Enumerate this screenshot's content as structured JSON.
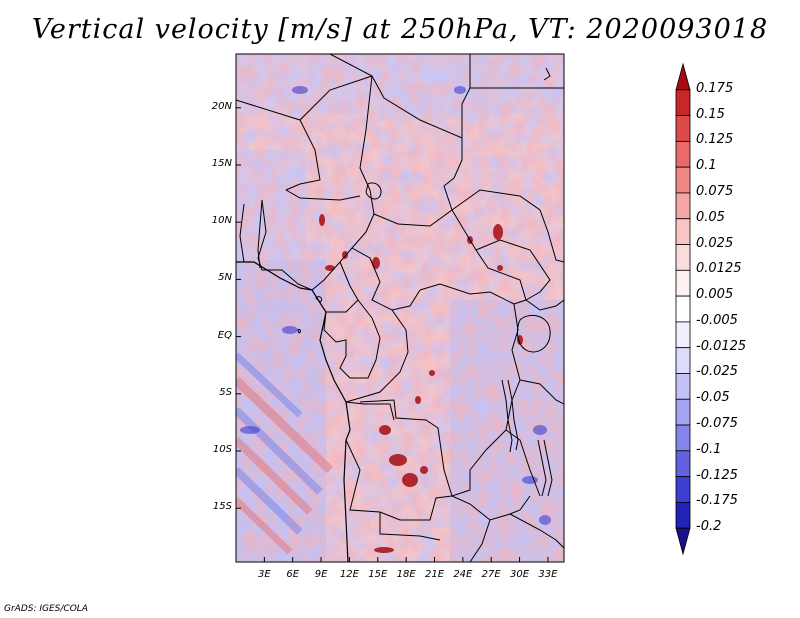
{
  "title": "Vertical velocity [m/s] at 250hPa, VT: 2020093018",
  "credit": "GrADS: IGES/COLA",
  "map": {
    "lat_labels": [
      "20N",
      "15N",
      "10N",
      "5N",
      "EQ",
      "5S",
      "10S",
      "15S"
    ],
    "lat_values": [
      20,
      15,
      10,
      5,
      0,
      -5,
      -10,
      -15
    ],
    "lon_labels": [
      "3E",
      "6E",
      "9E",
      "12E",
      "15E",
      "18E",
      "21E",
      "24E",
      "27E",
      "30E",
      "33E"
    ],
    "lon_values": [
      3,
      6,
      9,
      12,
      15,
      18,
      21,
      24,
      27,
      30,
      33
    ],
    "lat_range": [
      -19.7,
      24.7
    ],
    "lon_range": [
      0,
      34.7
    ]
  },
  "colorbar": {
    "labels": [
      "0.175",
      "0.15",
      "0.125",
      "0.1",
      "0.075",
      "0.05",
      "0.025",
      "0.0125",
      "0.005",
      "-0.005",
      "-0.0125",
      "-0.025",
      "-0.05",
      "-0.075",
      "-0.1",
      "-0.125",
      "-0.175",
      "-0.2"
    ],
    "colors": [
      "#a50d12",
      "#c9262a",
      "#dc4a4c",
      "#e86a6a",
      "#f08888",
      "#f4a6a6",
      "#f8c4c4",
      "#fadcdc",
      "#fdf0f0",
      "#ffffff",
      "#efeffd",
      "#dcdcfa",
      "#c2c2f6",
      "#a4a4f1",
      "#8484ea",
      "#6262e0",
      "#3e3ed2",
      "#2222b8",
      "#1a0f8c"
    ]
  }
}
